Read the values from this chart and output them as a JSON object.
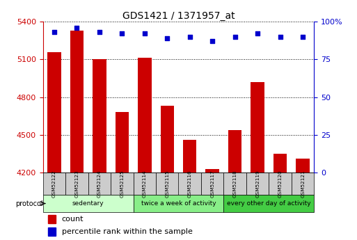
{
  "title": "GDS1421 / 1371957_at",
  "samples": [
    "GSM52122",
    "GSM52123",
    "GSM52124",
    "GSM52125",
    "GSM52114",
    "GSM52115",
    "GSM52116",
    "GSM52117",
    "GSM52118",
    "GSM52119",
    "GSM52120",
    "GSM52121"
  ],
  "counts": [
    5160,
    5330,
    5100,
    4680,
    5115,
    4730,
    4460,
    4230,
    4540,
    4920,
    4350,
    4310
  ],
  "percentiles": [
    93,
    96,
    93,
    92,
    92,
    89,
    90,
    87,
    90,
    92,
    90,
    90
  ],
  "ylim_left": [
    4200,
    5400
  ],
  "ylim_right": [
    0,
    100
  ],
  "yticks_left": [
    4200,
    4500,
    4800,
    5100,
    5400
  ],
  "yticks_right": [
    0,
    25,
    50,
    75,
    100
  ],
  "bar_color": "#cc0000",
  "dot_color": "#0000cc",
  "groups": [
    {
      "label": "sedentary",
      "start": 0,
      "end": 4
    },
    {
      "label": "twice a week of activity",
      "start": 4,
      "end": 8
    },
    {
      "label": "every other day of activity",
      "start": 8,
      "end": 12
    }
  ],
  "group_colors": [
    "#ccffcc",
    "#88ee88",
    "#44cc44"
  ],
  "protocol_label": "protocol",
  "legend_count_label": "count",
  "legend_percentile_label": "percentile rank within the sample",
  "bar_color_left": "#cc0000",
  "tick_label_color_right": "#0000cc",
  "background_color": "#ffffff",
  "bar_width": 0.6
}
